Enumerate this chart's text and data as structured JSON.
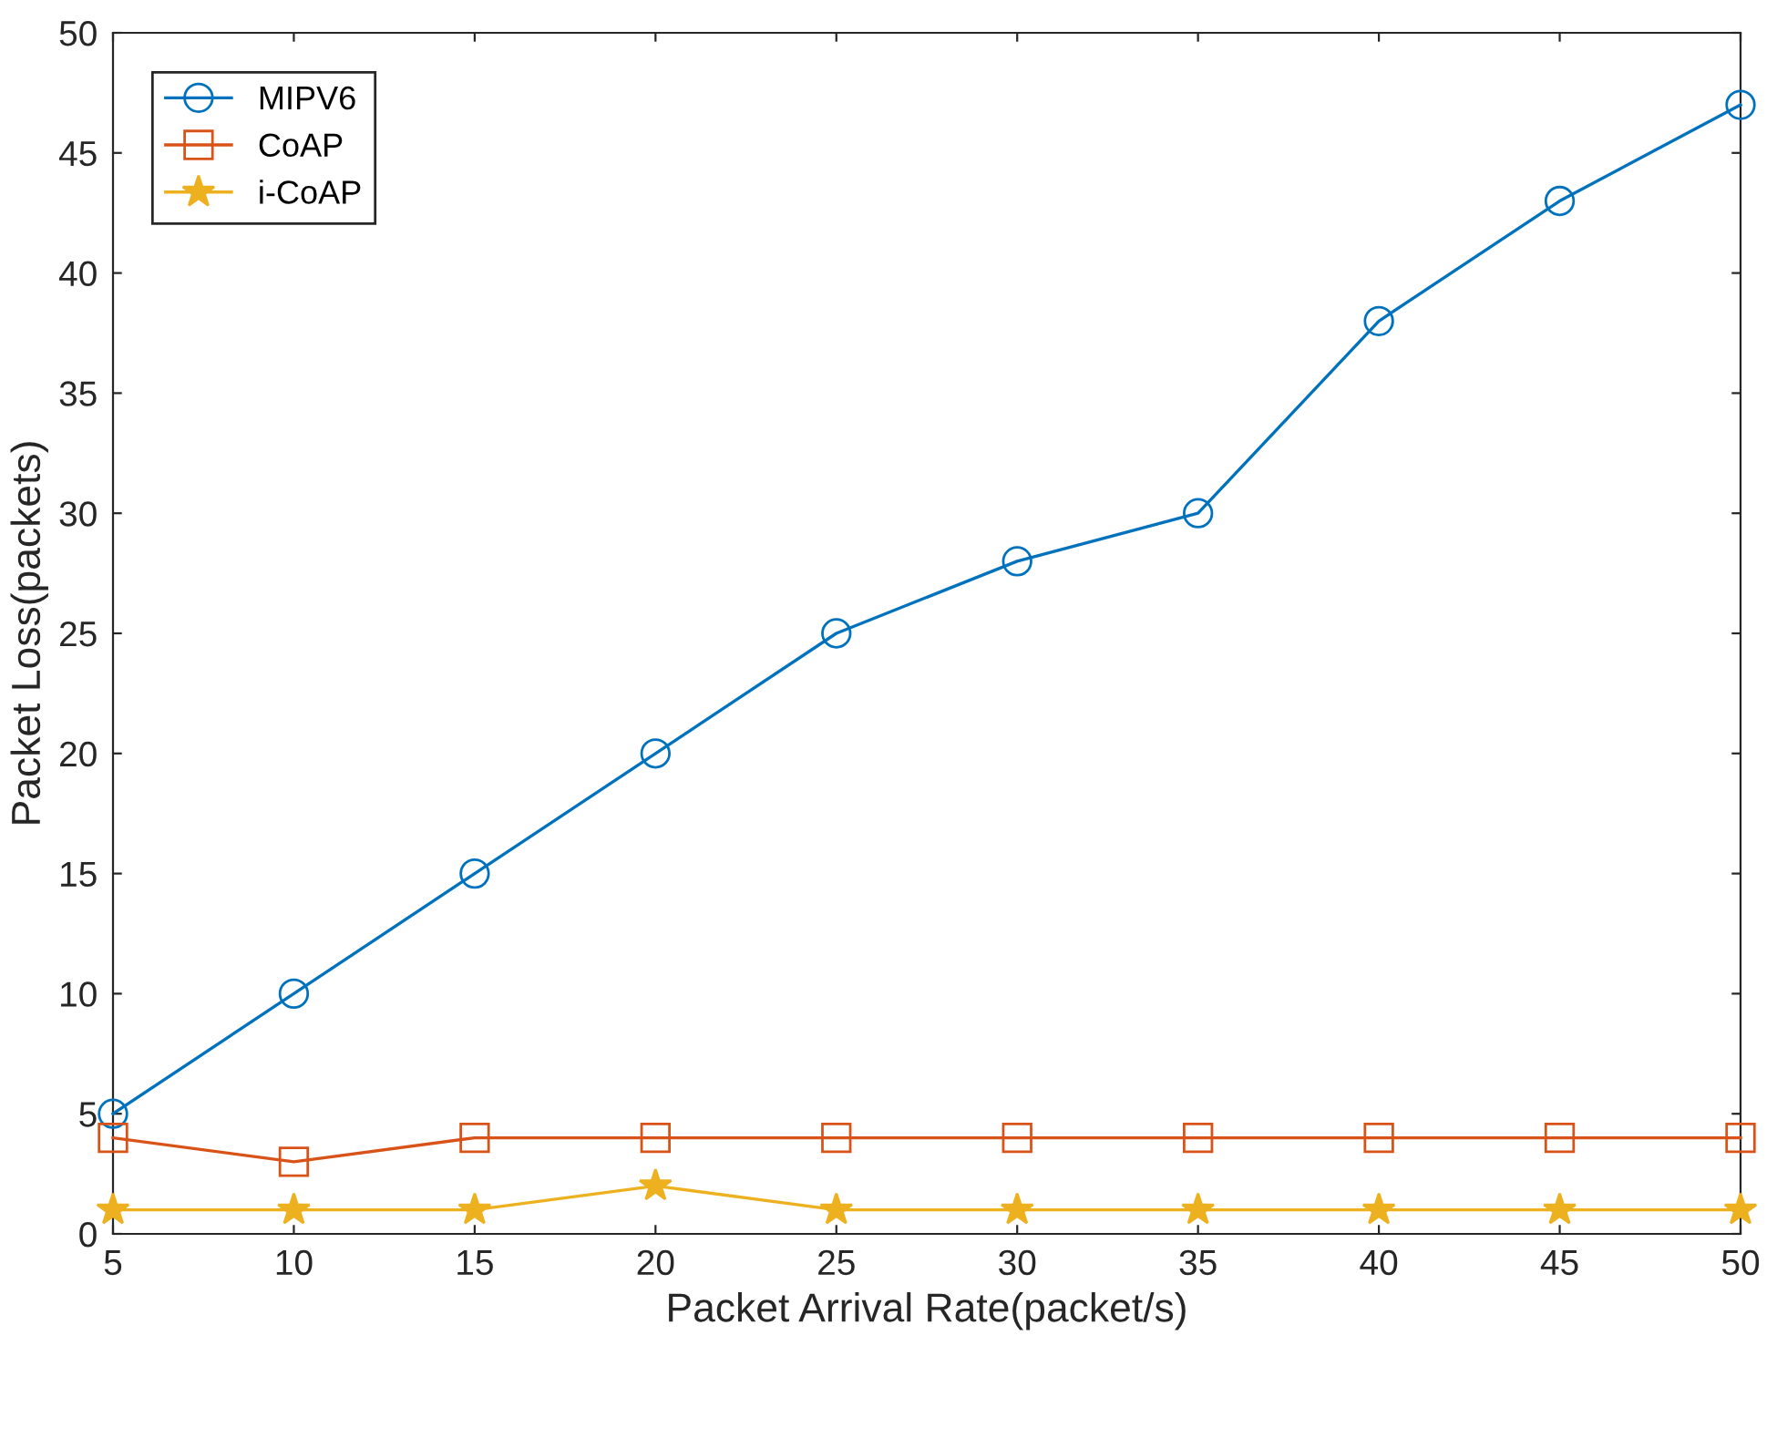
{
  "chart_data": {
    "type": "line",
    "xlabel": "Packet Arrival Rate(packet/s)",
    "ylabel": "Packet Loss(packets)",
    "x": [
      5,
      10,
      15,
      20,
      25,
      30,
      35,
      40,
      45,
      50
    ],
    "series": [
      {
        "name": "MIPV6",
        "color": "#0072bd",
        "marker": "circle",
        "values": [
          5,
          10,
          15,
          20,
          25,
          28,
          30,
          38,
          43,
          47
        ]
      },
      {
        "name": "CoAP",
        "color": "#d95319",
        "marker": "square",
        "values": [
          4,
          3,
          4,
          4,
          4,
          4,
          4,
          4,
          4,
          4
        ]
      },
      {
        "name": "i-CoAP",
        "color": "#edb120",
        "marker": "star",
        "values": [
          1,
          1,
          1,
          2,
          1,
          1,
          1,
          1,
          1,
          1
        ]
      }
    ],
    "xlim": [
      5,
      50
    ],
    "xticks": [
      5,
      10,
      15,
      20,
      25,
      30,
      35,
      40,
      45,
      50
    ],
    "ylim": [
      0,
      50
    ],
    "yticks": [
      0,
      5,
      10,
      15,
      20,
      25,
      30,
      35,
      40,
      45,
      50
    ],
    "grid": false,
    "legend": "top left",
    "line_style": "solid"
  }
}
